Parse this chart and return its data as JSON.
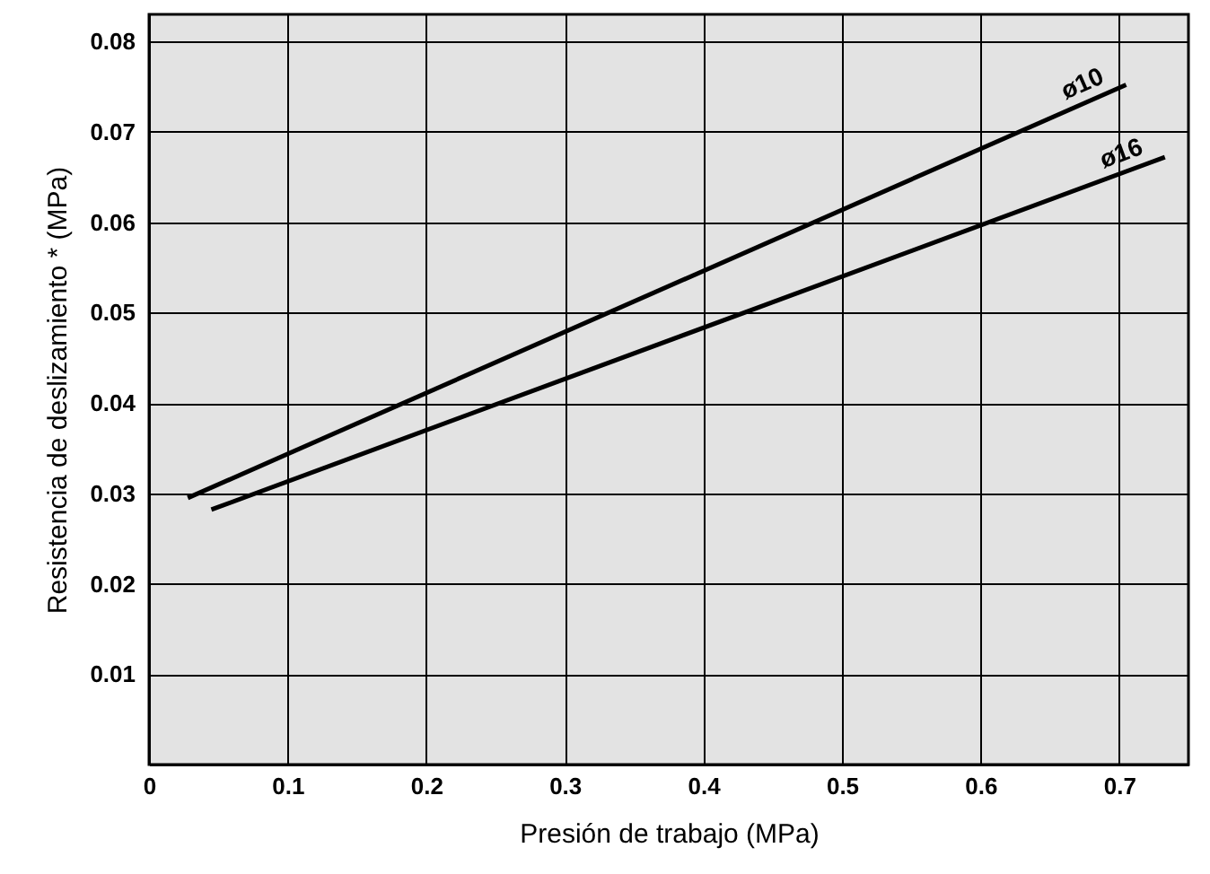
{
  "chart_data": {
    "type": "line",
    "xlabel": "Presión de trabajo (MPa)",
    "ylabel": "Resistencia de deslizamiento * (MPa)",
    "xlim": [
      0,
      0.75
    ],
    "xticks": [
      0,
      0.1,
      0.2,
      0.3,
      0.4,
      0.5,
      0.6,
      0.7
    ],
    "ylim": [
      0,
      0.083
    ],
    "yticks": [
      0.01,
      0.02,
      0.03,
      0.04,
      0.05,
      0.06,
      0.07,
      0.08
    ],
    "grid": true,
    "marker": "none",
    "line_style": "solid",
    "series": [
      {
        "name": "ø10",
        "color": "#000000",
        "x": [
          0.028,
          0.705
        ],
        "values": [
          0.0295,
          0.0752
        ]
      },
      {
        "name": "ø16",
        "color": "#000000",
        "x": [
          0.045,
          0.733
        ],
        "values": [
          0.0282,
          0.0672
        ]
      }
    ]
  }
}
